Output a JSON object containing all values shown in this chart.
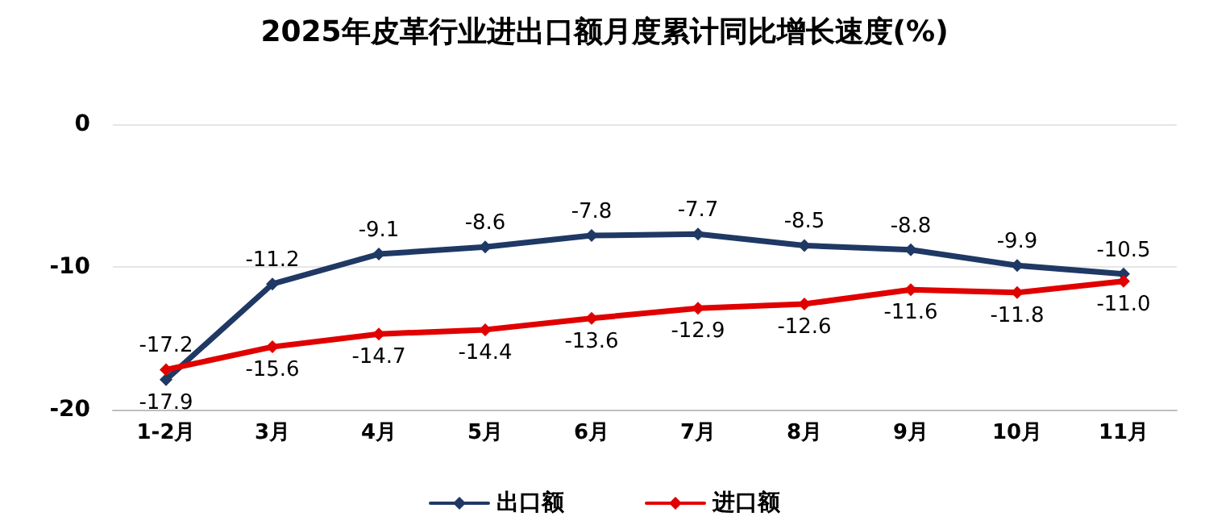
{
  "chart_data": {
    "type": "line",
    "title": "2025年皮革行业进出口额月度累计同比增长速度(%)",
    "categories": [
      "1-2月",
      "3月",
      "4月",
      "5月",
      "6月",
      "7月",
      "8月",
      "9月",
      "10月",
      "11月"
    ],
    "series": [
      {
        "name": "出口额",
        "color": "#1f3864",
        "values": [
          -17.9,
          -11.2,
          -9.1,
          -8.6,
          -7.8,
          -7.7,
          -8.5,
          -8.8,
          -9.9,
          -10.5
        ],
        "value_labels": [
          "-17.9",
          "-11.2",
          "-9.1",
          "-8.6",
          "-7.8",
          "-7.7",
          "-8.5",
          "-8.8",
          "-9.9",
          "-10.5"
        ]
      },
      {
        "name": "进口额",
        "color": "#e00000",
        "values": [
          -17.2,
          -15.6,
          -14.7,
          -14.4,
          -13.6,
          -12.9,
          -12.6,
          -11.6,
          -11.8,
          -11.0
        ],
        "value_labels": [
          "-17.2",
          "-15.6",
          "-14.7",
          "-14.4",
          "-13.6",
          "-12.9",
          "-12.6",
          "-11.6",
          "-11.8",
          "-11.0"
        ]
      }
    ],
    "ylim": [
      -20,
      0
    ],
    "yticks": [
      -20,
      -10,
      0
    ],
    "grid": "y",
    "legend": "bottom",
    "marker": "diamond",
    "line_style": "solid"
  }
}
